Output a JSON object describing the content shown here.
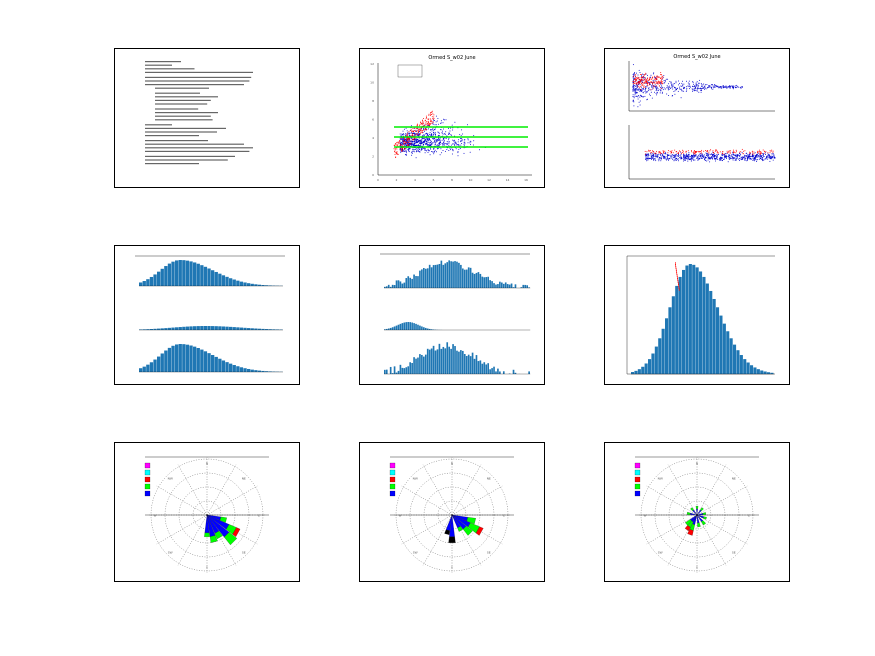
{
  "slides": [
    {
      "index": 1,
      "kind": "text-page"
    },
    {
      "index": 2,
      "kind": "scatter-plot",
      "title": "Ormed S_w02 June",
      "y_ticks": [
        "12",
        "10",
        "8",
        "6",
        "4",
        "2",
        "0"
      ],
      "x_ticks": [
        "0",
        "2",
        "4",
        "6",
        "8",
        "10",
        "12",
        "14",
        "16"
      ]
    },
    {
      "index": 3,
      "kind": "scatter-plot-pair",
      "title": "Ormed S_w02 June"
    },
    {
      "index": 4,
      "kind": "histogram-stack"
    },
    {
      "index": 5,
      "kind": "histogram-stack"
    },
    {
      "index": 6,
      "kind": "histogram"
    },
    {
      "index": 7,
      "kind": "wind-rose",
      "legend_colors": [
        "#ff00ff",
        "#00ffff",
        "#ff0000",
        "#00ff00",
        "#0000ff"
      ],
      "compass": [
        "N",
        "NE",
        "E",
        "SE",
        "S",
        "SW",
        "W",
        "NW"
      ]
    },
    {
      "index": 8,
      "kind": "wind-rose",
      "legend_colors": [
        "#ff00ff",
        "#00ffff",
        "#ff0000",
        "#00ff00",
        "#0000ff"
      ],
      "compass": [
        "N",
        "NE",
        "E",
        "SE",
        "S",
        "SW",
        "W",
        "NW"
      ]
    },
    {
      "index": 9,
      "kind": "wind-rose",
      "legend_colors": [
        "#ff00ff",
        "#00ffff",
        "#ff0000",
        "#00ff00",
        "#0000ff"
      ],
      "compass": [
        "N",
        "NE",
        "E",
        "SE",
        "S",
        "SW",
        "W",
        "NW"
      ]
    }
  ],
  "colors": {
    "bar": "#1f77b4",
    "scatter_red": "#ff0000",
    "scatter_blue": "#0000cc",
    "line_green": "#00ee00",
    "rose_blue": "#0000ff",
    "rose_green": "#00ff00",
    "rose_red": "#ff0000",
    "rose_black": "#000000"
  }
}
